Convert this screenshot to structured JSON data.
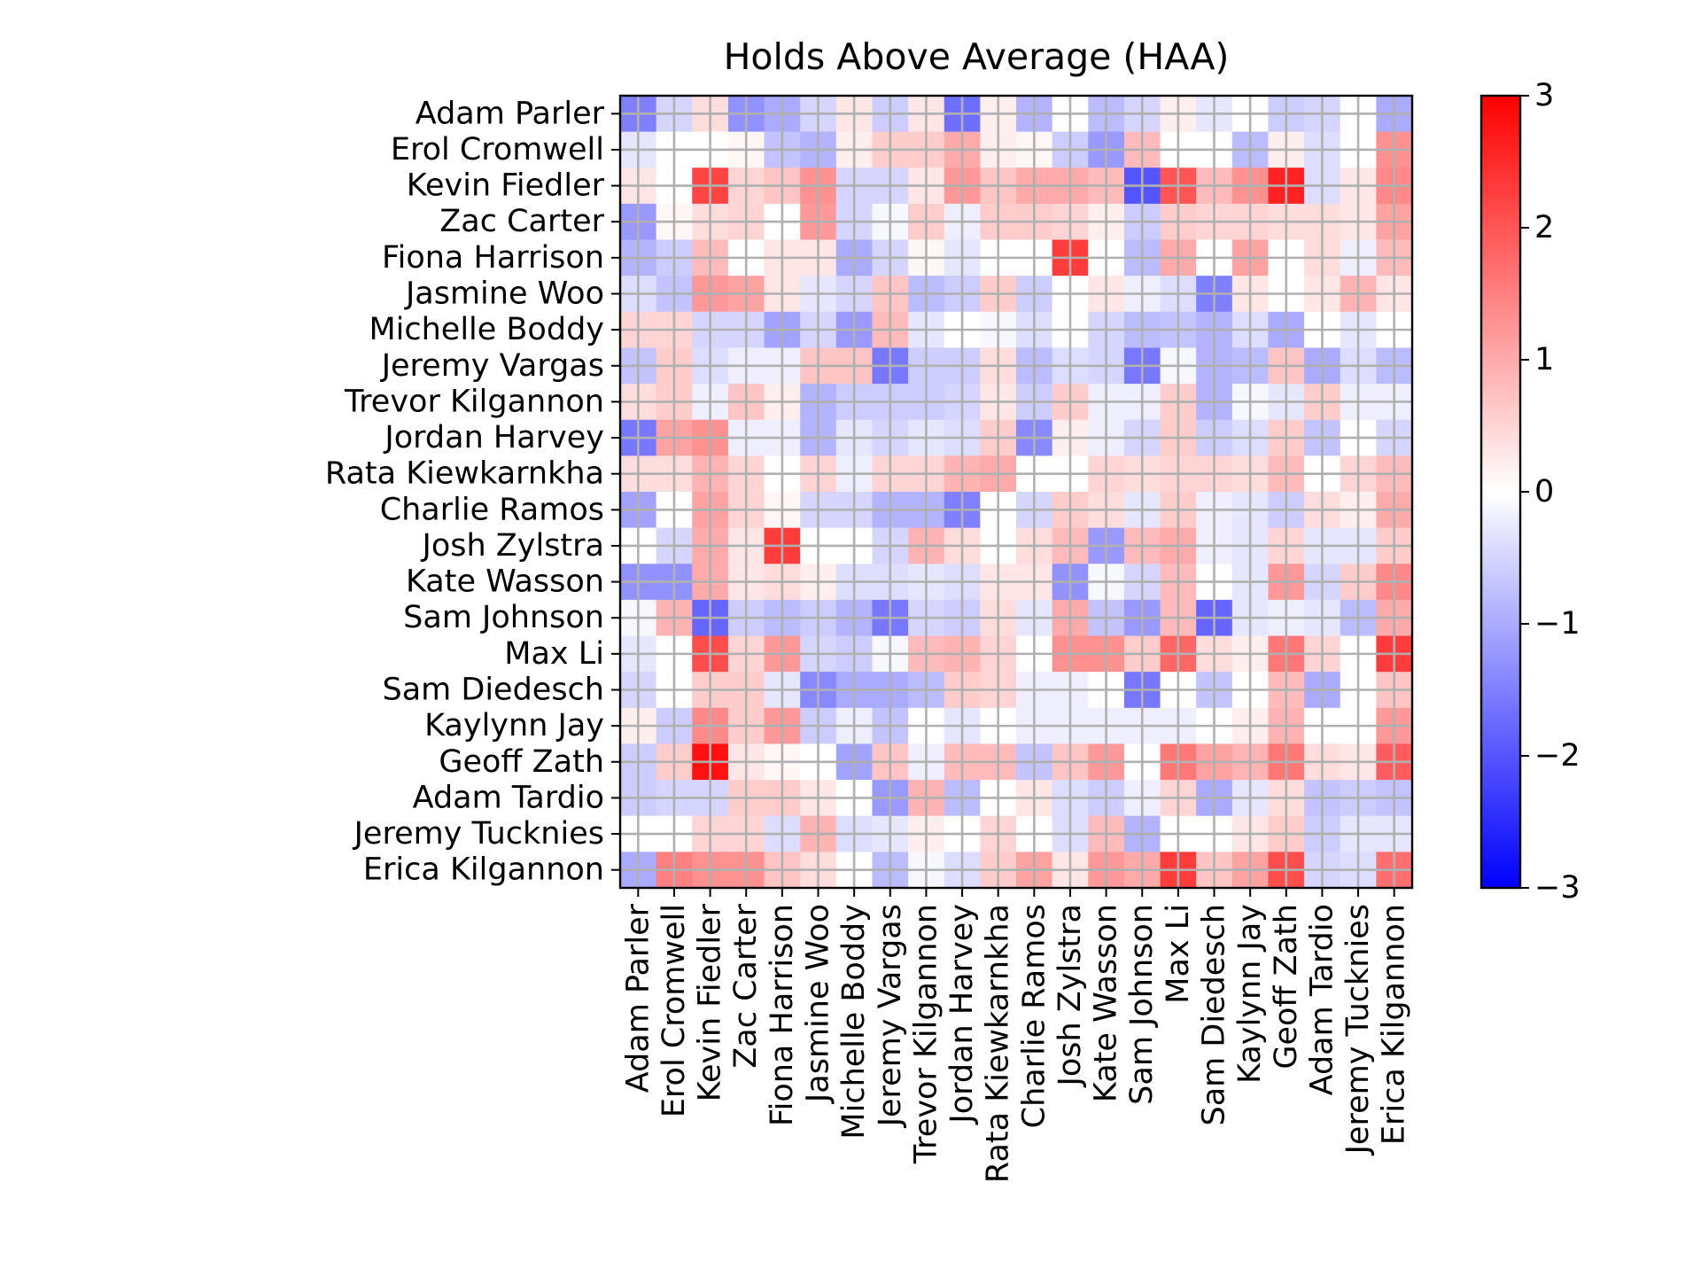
{
  "chart_data": {
    "type": "heatmap",
    "title": "Holds Above Average (HAA)",
    "row_labels": [
      "Adam Parler",
      "Erol Cromwell",
      "Kevin Fiedler",
      "Zac Carter",
      "Fiona Harrison",
      "Jasmine Woo",
      "Michelle Boddy",
      "Jeremy Vargas",
      "Trevor Kilgannon ",
      "Jordan Harvey",
      "Rata Kiewkarnkha",
      "Charlie Ramos",
      "Josh Zylstra ",
      "Kate Wasson",
      "Sam Johnson",
      "Max Li",
      "Sam Diedesch",
      "Kaylynn Jay",
      "Geoff Zath",
      "Adam Tardio",
      "Jeremy Tucknies",
      "Erica Kilgannon"
    ],
    "column_labels": [
      "Adam Parler",
      "Erol Cromwell",
      "Kevin Fiedler",
      "Zac Carter",
      "Fiona Harrison",
      "Jasmine Woo",
      "Michelle Boddy",
      "Jeremy Vargas",
      "Trevor Kilgannon",
      "Jordan Harvey",
      "Rata Kiewkarnkha",
      "Charlie Ramos",
      "Josh Zylstra",
      "Kate Wasson",
      "Sam Johnson",
      "Max Li",
      "Sam Diedesch",
      "Kaylynn Jay",
      "Geoff Zath",
      "Adam Tardio",
      "Jeremy Tucknies",
      "Erica Kilgannon"
    ],
    "values": [
      [
        -1.5,
        -0.5,
        0.4,
        -1.3,
        -1.0,
        -0.5,
        0.3,
        -0.6,
        0.3,
        -1.7,
        0.2,
        -0.9,
        0.0,
        -0.8,
        -0.5,
        0.2,
        -0.3,
        0.0,
        -0.6,
        -0.5,
        0.0,
        -1.0
      ],
      [
        -0.3,
        0.0,
        0.0,
        0.1,
        -0.7,
        -0.9,
        0.2,
        0.6,
        0.6,
        1.0,
        0.2,
        0.1,
        -0.6,
        -1.2,
        0.8,
        0.0,
        0.0,
        -0.8,
        0.2,
        -0.4,
        0.0,
        1.3
      ],
      [
        0.3,
        0.0,
        2.2,
        0.5,
        0.7,
        1.3,
        -0.5,
        -0.5,
        0.3,
        1.2,
        0.7,
        1.0,
        1.0,
        0.8,
        -2.0,
        2.0,
        0.8,
        1.3,
        2.6,
        -0.4,
        0.3,
        1.4
      ],
      [
        -1.2,
        0.1,
        0.4,
        0.5,
        0.0,
        1.2,
        -0.5,
        -0.1,
        0.6,
        -0.2,
        0.6,
        0.6,
        0.5,
        0.2,
        -0.6,
        0.6,
        0.5,
        0.5,
        0.4,
        0.4,
        0.3,
        1.1
      ],
      [
        -0.9,
        -0.6,
        0.8,
        0.0,
        0.3,
        0.3,
        -1.0,
        -0.5,
        0.1,
        -0.3,
        0.0,
        0.0,
        2.3,
        0.0,
        -0.8,
        1.0,
        0.0,
        1.1,
        0.0,
        0.4,
        -0.2,
        0.8
      ],
      [
        -0.4,
        -0.7,
        1.2,
        1.1,
        0.3,
        -0.3,
        -0.5,
        0.7,
        -0.8,
        -0.6,
        0.6,
        -0.6,
        0.0,
        0.3,
        -0.2,
        -0.4,
        -1.5,
        0.3,
        0.0,
        0.3,
        0.9,
        0.3
      ],
      [
        0.5,
        0.5,
        -0.5,
        -0.5,
        -1.1,
        -0.5,
        -1.2,
        0.8,
        -0.3,
        0.0,
        -0.1,
        -0.4,
        0.0,
        -0.5,
        -0.8,
        -0.7,
        -0.9,
        -0.4,
        -1.0,
        0.0,
        -0.3,
        0.0
      ],
      [
        -0.7,
        0.6,
        -0.4,
        -0.2,
        -0.2,
        0.7,
        0.7,
        -1.6,
        -0.6,
        -0.6,
        0.4,
        -0.8,
        -0.4,
        -0.5,
        -1.6,
        -0.1,
        -0.9,
        -0.8,
        0.7,
        -1.0,
        -0.4,
        -0.8
      ],
      [
        0.4,
        0.6,
        -0.2,
        0.7,
        0.2,
        -0.9,
        -0.6,
        -0.6,
        -0.6,
        -0.5,
        0.3,
        -0.6,
        0.6,
        -0.2,
        -0.2,
        0.6,
        -0.9,
        -0.1,
        -0.3,
        0.6,
        -0.2,
        -0.2
      ],
      [
        -1.6,
        1.1,
        1.3,
        -0.2,
        -0.2,
        -0.9,
        -0.3,
        -0.5,
        -0.3,
        -0.4,
        0.6,
        -1.4,
        0.2,
        -0.2,
        -0.5,
        0.6,
        -0.6,
        -0.4,
        0.6,
        -0.7,
        0.0,
        -0.5
      ],
      [
        0.4,
        0.4,
        0.9,
        0.5,
        0.0,
        0.5,
        -0.2,
        0.5,
        0.5,
        0.9,
        1.0,
        0.0,
        0.0,
        0.5,
        0.4,
        0.5,
        0.5,
        0.4,
        0.8,
        0.0,
        0.5,
        0.8
      ],
      [
        -1.1,
        0.0,
        1.1,
        0.5,
        0.1,
        -0.5,
        -0.5,
        -0.9,
        -0.9,
        -1.5,
        0.0,
        -0.5,
        0.6,
        0.4,
        -0.3,
        0.6,
        -0.2,
        -0.3,
        -0.6,
        0.4,
        0.2,
        1.0
      ],
      [
        0.0,
        -0.5,
        1.0,
        0.3,
        2.3,
        0.0,
        0.0,
        -0.5,
        0.9,
        0.4,
        0.0,
        0.4,
        0.8,
        -1.2,
        0.8,
        1.0,
        -0.2,
        -0.3,
        0.5,
        -0.3,
        -0.3,
        0.6
      ],
      [
        -1.3,
        -1.3,
        1.0,
        0.3,
        0.4,
        0.2,
        -0.4,
        -0.4,
        -0.3,
        -0.4,
        0.3,
        0.3,
        -1.3,
        -0.1,
        -0.5,
        0.8,
        0.0,
        -0.3,
        1.2,
        -0.5,
        0.6,
        1.4
      ],
      [
        -0.1,
        0.9,
        -1.8,
        -0.6,
        -0.8,
        -0.6,
        -0.9,
        -1.6,
        -0.5,
        -0.6,
        0.4,
        -0.3,
        1.0,
        -0.7,
        -1.2,
        0.8,
        -1.8,
        -0.3,
        -0.2,
        -0.3,
        -0.8,
        1.0
      ],
      [
        -0.3,
        0.0,
        2.1,
        0.5,
        1.2,
        -0.5,
        -0.6,
        -0.1,
        0.8,
        0.9,
        0.5,
        0.0,
        1.3,
        1.3,
        0.6,
        1.8,
        0.4,
        0.2,
        1.6,
        0.5,
        0.0,
        2.3
      ],
      [
        -0.5,
        0.0,
        0.6,
        0.6,
        -0.3,
        -1.4,
        -1.0,
        -1.0,
        -0.8,
        0.6,
        0.5,
        -0.2,
        -0.2,
        0.0,
        -1.6,
        0.0,
        -0.7,
        0.0,
        0.8,
        -1.0,
        0.0,
        0.7
      ],
      [
        0.2,
        -0.6,
        1.4,
        0.6,
        1.2,
        -0.6,
        -0.2,
        -0.7,
        0.0,
        -0.3,
        0.0,
        -0.2,
        -0.2,
        -0.2,
        -0.2,
        -0.2,
        0.0,
        0.2,
        0.9,
        0.0,
        0.0,
        1.2
      ],
      [
        -0.6,
        0.6,
        2.8,
        0.3,
        0.1,
        0.0,
        -1.1,
        0.7,
        -0.2,
        0.8,
        0.8,
        -0.7,
        0.7,
        1.2,
        0.0,
        1.6,
        1.1,
        0.9,
        1.6,
        0.4,
        0.3,
        1.9
      ],
      [
        -0.6,
        -0.5,
        -0.5,
        0.6,
        0.6,
        0.3,
        0.0,
        -1.2,
        0.9,
        -0.8,
        0.0,
        0.3,
        -0.4,
        -0.6,
        -0.2,
        0.5,
        -1.0,
        -0.3,
        0.4,
        -0.7,
        -0.6,
        -0.7
      ],
      [
        0.0,
        0.0,
        0.5,
        0.5,
        -0.4,
        0.9,
        -0.4,
        -0.3,
        0.2,
        0.0,
        0.5,
        0.0,
        -0.4,
        0.8,
        -0.9,
        0.0,
        0.0,
        0.3,
        0.6,
        -0.6,
        -0.3,
        -0.3
      ],
      [
        -1.0,
        1.5,
        1.3,
        1.3,
        0.7,
        0.4,
        0.0,
        -0.8,
        -0.1,
        -0.4,
        0.6,
        1.1,
        0.3,
        1.2,
        1.0,
        2.3,
        0.7,
        1.1,
        2.1,
        -0.5,
        -0.4,
        1.7
      ]
    ],
    "vmin": -3,
    "vmax": 3,
    "colormap": "bwr",
    "colormap_stops": [
      "#0000ff",
      "#ffffff",
      "#ff0000"
    ],
    "colorbar_ticks": [
      "3",
      "2",
      "1",
      "0",
      "−1",
      "−2",
      "−3"
    ],
    "colorbar_tick_values": [
      3,
      2,
      1,
      0,
      -1,
      -2,
      -3
    ],
    "grid": true,
    "grid_color": "#b0b0b0",
    "xlabel": "",
    "ylabel": ""
  }
}
